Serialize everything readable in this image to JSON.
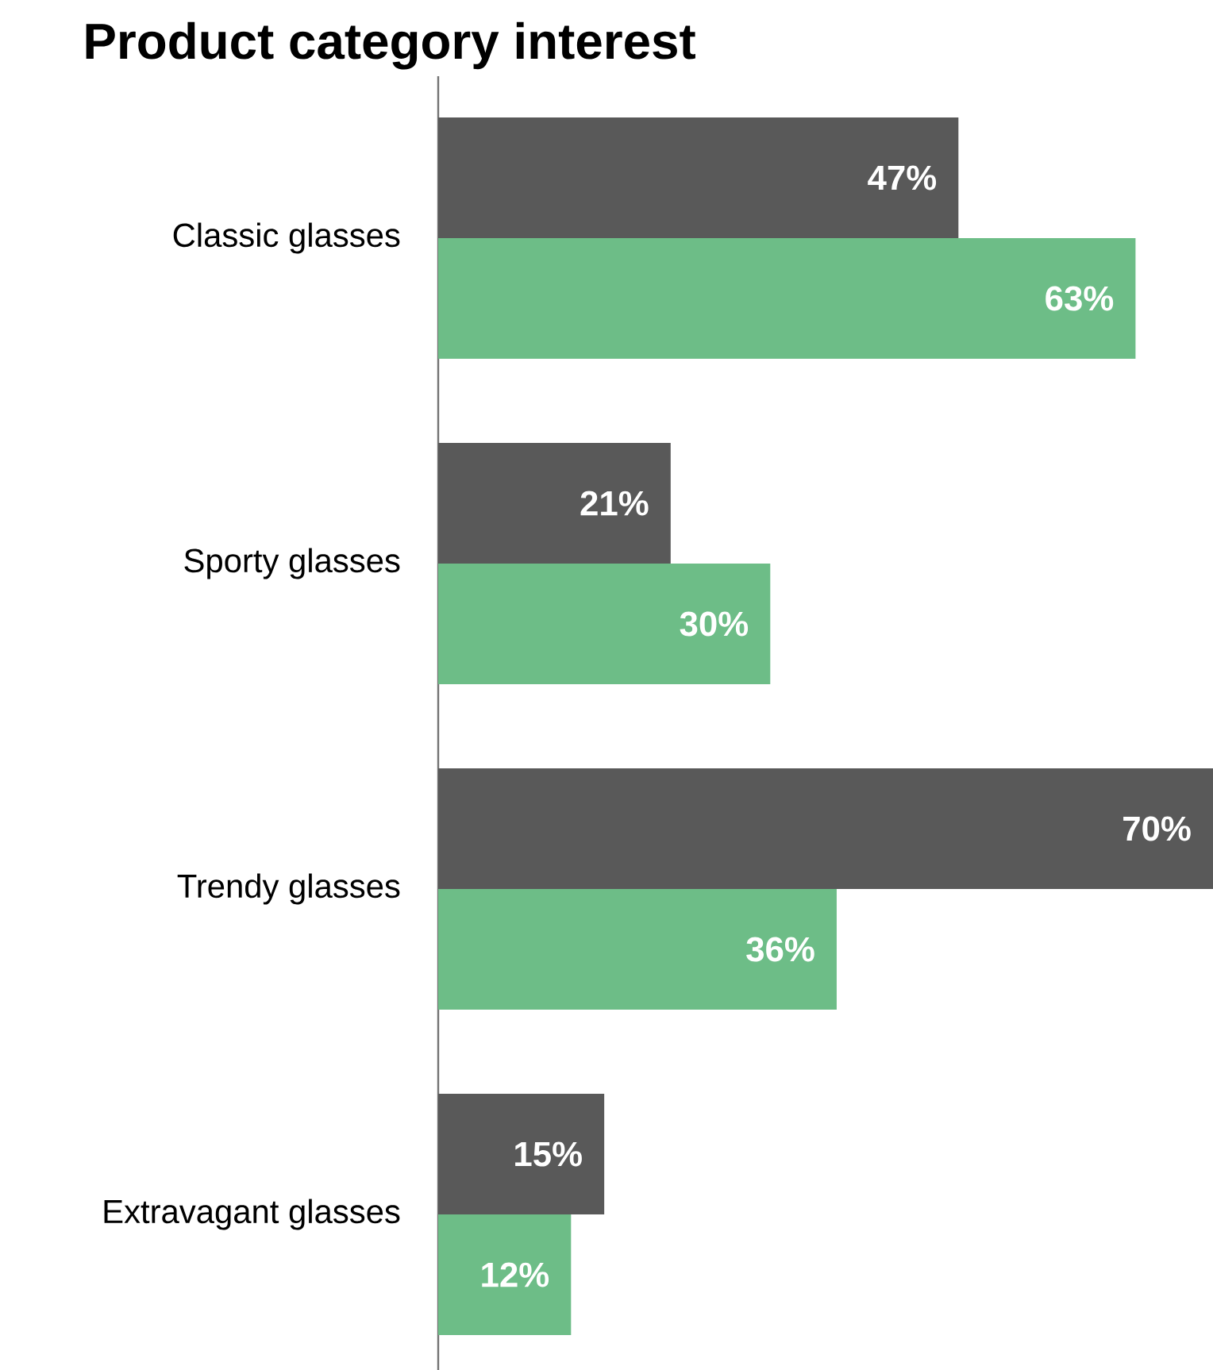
{
  "chart_data": {
    "type": "bar",
    "orientation": "horizontal",
    "title": "Product category interest",
    "categories": [
      "Classic glasses",
      "Sporty glasses",
      "Trendy glasses",
      "Extravagant glasses"
    ],
    "series": [
      {
        "color": "#595959",
        "values": [
          47,
          21,
          70,
          15
        ],
        "value_labels": [
          "47%",
          "21%",
          "70%",
          "15%"
        ]
      },
      {
        "color": "#6dbd87",
        "values": [
          63,
          30,
          36,
          12
        ],
        "value_labels": [
          "63%",
          "30%",
          "36%",
          "12%"
        ]
      }
    ],
    "xlim": [
      0,
      70
    ],
    "tick_labels": "y"
  }
}
